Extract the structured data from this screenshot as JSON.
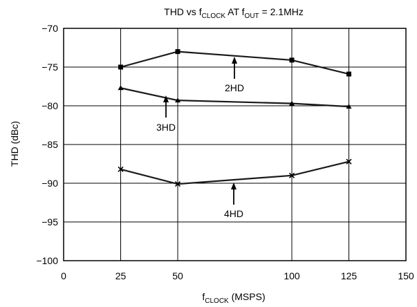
{
  "chart_data": {
    "type": "line",
    "title": {
      "prefix": "THD vs f",
      "sub1": "CLOCK",
      "mid": " AT f",
      "sub2": "OUT",
      "suffix": " = 2.1MHz"
    },
    "xlabel": {
      "prefix": "f",
      "sub": "CLOCK",
      "suffix": " (MSPS)"
    },
    "ylabel": "THD (dBc)",
    "xlim": [
      0,
      150
    ],
    "ylim": [
      -100,
      -70
    ],
    "x_ticks": [
      0,
      25,
      50,
      100,
      125,
      150
    ],
    "x_tick_labels": [
      "0",
      "25",
      "50",
      "100",
      "125",
      "150"
    ],
    "y_ticks": [
      -70,
      -75,
      -80,
      -85,
      -90,
      -95,
      -100
    ],
    "y_tick_labels": [
      "−70",
      "−75",
      "−80",
      "−85",
      "−90",
      "−95",
      "−100"
    ],
    "grid": true,
    "series": [
      {
        "name": "2HD",
        "marker": "square",
        "x": [
          25,
          50,
          100,
          125
        ],
        "y": [
          -75.0,
          -73.0,
          -74.1,
          -75.9
        ]
      },
      {
        "name": "3HD",
        "marker": "triangle",
        "x": [
          25,
          50,
          100,
          125
        ],
        "y": [
          -77.7,
          -79.3,
          -79.7,
          -80.1
        ]
      },
      {
        "name": "4HD",
        "marker": "x",
        "x": [
          25,
          50,
          100,
          125
        ],
        "y": [
          -88.2,
          -90.1,
          -89.0,
          -87.2
        ]
      }
    ],
    "annotations": [
      {
        "label": "2HD",
        "series": "2HD"
      },
      {
        "label": "3HD",
        "series": "3HD"
      },
      {
        "label": "4HD",
        "series": "4HD"
      }
    ]
  }
}
